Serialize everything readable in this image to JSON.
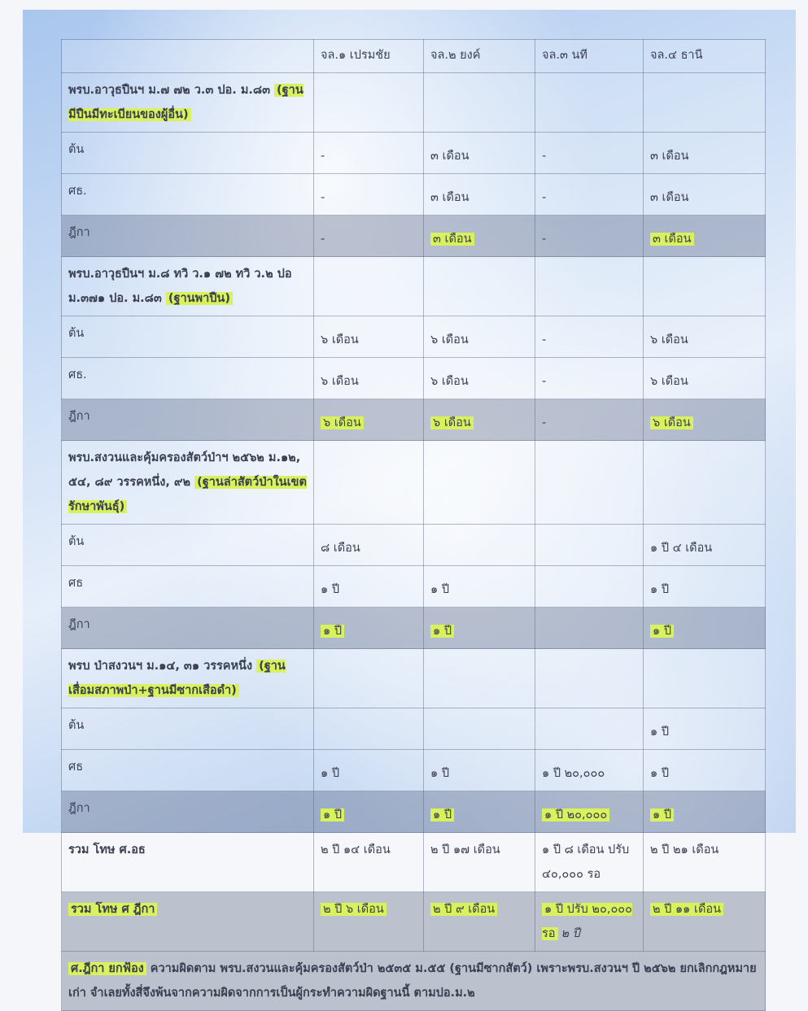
{
  "columns": [
    "",
    "จล.๑ เปรมชัย",
    "จล.๒ ยงค์",
    "จล.๓ นที",
    "จล.๔ ธานี"
  ],
  "sections": [
    {
      "title": "พรบ.อาวุธปืนฯ ม.๗ ๗๒ ว.๓ ปอ. ม.๘๓",
      "title_highlight": "(ฐานมีปืนมีทะเบียนของผู้อื่น)",
      "rows": [
        {
          "label": "ต้น",
          "cells": [
            "-",
            "๓ เดือน",
            "-",
            "๓ เดือน"
          ]
        },
        {
          "label": "ศธ.",
          "cells": [
            "-",
            "๓ เดือน",
            "-",
            "๓ เดือน"
          ]
        },
        {
          "label": "ฎีกา",
          "cells": [
            "-",
            "๓ เดือน",
            "-",
            "๓ เดือน"
          ],
          "highlighted": true
        }
      ]
    },
    {
      "title": "พรบ.อาวุธปืนฯ ม.๘ ทวิ ว.๑ ๗๒ ทวิ ว.๒ ปอ ม.๓๗๑ ปอ. ม.๘๓",
      "title_highlight": "(ฐานพาปืน)",
      "rows": [
        {
          "label": "ต้น",
          "cells": [
            "๖ เดือน",
            "๖ เดือน",
            "-",
            "๖ เดือน"
          ]
        },
        {
          "label": "ศธ.",
          "cells": [
            "๖ เดือน",
            "๖ เดือน",
            "-",
            "๖ เดือน"
          ]
        },
        {
          "label": "ฎีกา",
          "cells": [
            "๖ เดือน",
            "๖ เดือน",
            "-",
            "๖ เดือน"
          ],
          "highlighted": true
        }
      ]
    },
    {
      "title": "พรบ.สงวนและคุ้มครองสัตว์ป่าฯ ๒๕๖๒ ม.๑๒, ๕๔, ๘๙ วรรคหนึ่ง, ๙๒",
      "title_highlight": "(ฐานล่าสัตว์ป่าในเขตรักษาพันธุ์)",
      "rows": [
        {
          "label": "ต้น",
          "cells": [
            "๘ เดือน",
            "",
            "",
            "๑ ปี ๔ เดือน"
          ]
        },
        {
          "label": "ศธ",
          "cells": [
            "๑ ปี",
            "๑ ปี",
            "",
            "๑ ปี"
          ]
        },
        {
          "label": "ฎีกา",
          "cells": [
            "๑ ปี",
            "๑ ปี",
            "",
            "๑ ปี"
          ],
          "highlighted": true
        }
      ]
    },
    {
      "title": "พรบ ป่าสงวนฯ ม.๑๔, ๓๑ วรรคหนึ่ง",
      "title_highlight": "(ฐานเสื่อมสภาพป่า+ฐานมีซากเสือดำ)",
      "rows": [
        {
          "label": "ต้น",
          "cells": [
            "",
            "",
            "",
            "๑ ปี"
          ]
        },
        {
          "label": "ศธ",
          "cells": [
            "๑ ปี",
            "๑ ปี",
            "๑ ปี ๒๐,๐๐๐",
            "๑ ปี"
          ]
        },
        {
          "label": "ฎีกา",
          "cells": [
            "๑ ปี",
            "๑ ปี",
            "๑ ปี ๒๐,๐๐๐",
            "๑ ปี"
          ],
          "highlighted": true
        }
      ]
    }
  ],
  "totals": [
    {
      "label": "รวม โทษ ศ.อธ",
      "cells": [
        "๒ ปี ๑๔ เดือน",
        "๒ ปี ๑๗ เดือน",
        "๑ ปี ๘ เดือน ปรับ ๔๐,๐๐๐ รอ",
        "๒ ปี ๒๑ เดือน"
      ]
    },
    {
      "label": "รวม โทษ ศ ฎีกา",
      "cells": [
        "๒ ปี ๖ เดือน",
        "๒ ปี ๙ เดือน",
        "๑ ปี ปรับ ๒๐,๐๐๐ รอ",
        "๒ ปี ๑๑ เดือน"
      ],
      "highlighted": true,
      "handwritten_note": "๒ ปี"
    }
  ],
  "note": {
    "highlight": "ศ.ฎีกา ยกฟ้อง",
    "text": " ความผิดตาม พรบ.สงวนและคุ้มครองสัตว์ป่า ๒๕๓๕ ม.๕๕ (ฐานมีซากสัตว์) เพราะพรบ.สงวนฯ ปี ๒๕๖๒ ยกเลิกกฎหมายเก่า จำเลยทั้งสี่จึงพ้นจากความผิดจากการเป็นผู้กระทำความผิดฐานนี้ ตามปอ.ม.๒"
  },
  "colors": {
    "highlighter": "#d9f25c",
    "shaded_row": "#8a93a8"
  }
}
